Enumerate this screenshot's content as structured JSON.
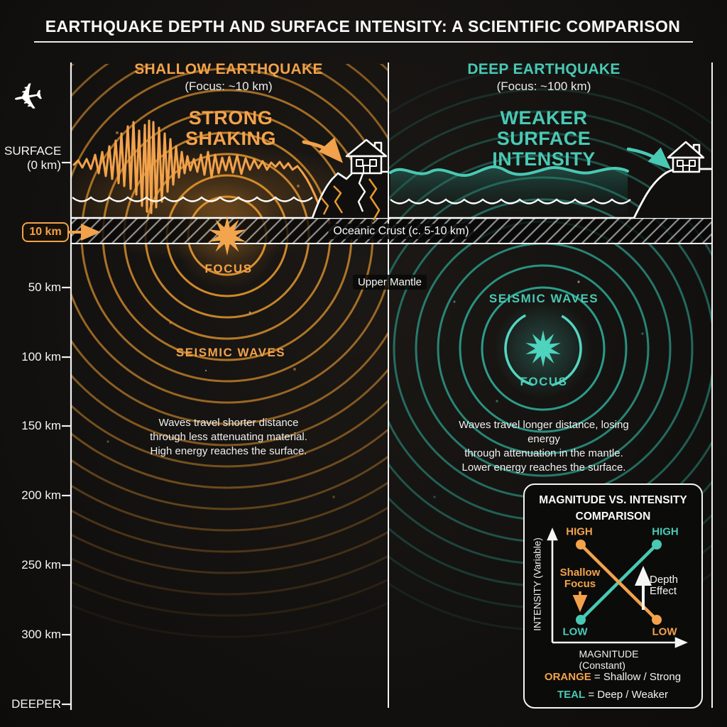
{
  "title": "EARTHQUAKE DEPTH AND SURFACE INTENSITY: A SCIENTIFIC COMPARISON",
  "colors": {
    "orange": "#F2A24B",
    "teal": "#49C9B4",
    "background": "#141210",
    "white": "#F2F2F2"
  },
  "icons": {
    "airplane": "✈"
  },
  "depth_axis": {
    "surface_line1": "SURFACE",
    "surface_line2": "(0 km)",
    "badge": "10 km",
    "ticks": [
      "50 km",
      "100 km",
      "150 km",
      "200 km",
      "250 km",
      "300 km"
    ],
    "deeper": "DEEPER"
  },
  "geology": {
    "crust": "Oceanic Crust (c. 5-10 km)",
    "mantle": "Upper Mantle"
  },
  "left_panel": {
    "header": "SHALLOW EARTHQUAKE",
    "focus_depth": "(Focus: ~10 km)",
    "callout_line1": "STRONG",
    "callout_line2": "SHAKING",
    "focus_label": "FOCUS",
    "waves_label": "SEISMIC WAVES",
    "description": [
      "Waves travel shorter distance",
      "through less attenuating material.",
      "High energy reaches the surface."
    ]
  },
  "right_panel": {
    "header": "DEEP EARTHQUAKE",
    "focus_depth": "(Focus: ~100 km)",
    "callout_line1": "WEAKER",
    "callout_line2": "SURFACE",
    "callout_line3": "INTENSITY",
    "focus_label": "FOCUS",
    "waves_label": "SEISMIC WAVES",
    "description": [
      "Waves travel longer distance, losing energy",
      "through attenuation in the mantle.",
      "Lower energy reaches the surface."
    ]
  },
  "chart": {
    "title_line1": "MAGNITUDE VS. INTENSITY",
    "title_line2": "COMPARISON",
    "y_label": "INTENSITY (Variable)",
    "x_label": "MAGNITUDE (Constant)",
    "orange_start": "HIGH",
    "orange_end": "LOW",
    "teal_start": "LOW",
    "teal_end": "HIGH",
    "shallow_line1": "Shallow",
    "shallow_line2": "Focus",
    "depth_line1": "Depth",
    "depth_line2": "Effect",
    "legend": [
      {
        "key": "ORANGE",
        "value": "= Shallow / Strong"
      },
      {
        "key": "TEAL",
        "value": "= Deep / Weaker"
      }
    ]
  },
  "chart_data": {
    "type": "line",
    "title": "MAGNITUDE VS. INTENSITY COMPARISON",
    "xlabel": "MAGNITUDE (Constant)",
    "ylabel": "INTENSITY (Variable)",
    "y_range": [
      "LOW",
      "HIGH"
    ],
    "series": [
      {
        "name": "Shallow / Strong",
        "color": "#F2A24B",
        "points": [
          {
            "x": "left",
            "y": "HIGH"
          },
          {
            "x": "right",
            "y": "LOW"
          }
        ]
      },
      {
        "name": "Deep / Weaker",
        "color": "#49C9B4",
        "points": [
          {
            "x": "left",
            "y": "LOW"
          },
          {
            "x": "right",
            "y": "HIGH"
          }
        ]
      }
    ],
    "annotations": [
      "Shallow Focus (arrow down)",
      "Depth Effect (arrow up)"
    ],
    "legend_position": "below x-axis"
  }
}
